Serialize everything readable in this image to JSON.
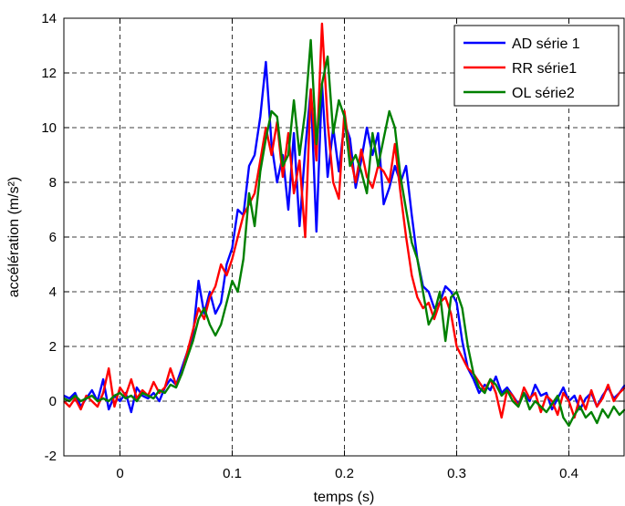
{
  "chart_data": {
    "type": "line",
    "title": "",
    "xlabel": "temps (s)",
    "ylabel": "accélération (m/s²)",
    "xlim": [
      -0.05,
      0.45
    ],
    "ylim": [
      -2,
      14
    ],
    "xticks": [
      0,
      0.1,
      0.2,
      0.3,
      0.4
    ],
    "xtick_labels": [
      "0",
      "0.1",
      "0.2",
      "0.3",
      "0.4"
    ],
    "yticks": [
      -2,
      0,
      2,
      4,
      6,
      8,
      10,
      12,
      14
    ],
    "ytick_labels": [
      "-2",
      "0",
      "2",
      "4",
      "6",
      "8",
      "10",
      "12",
      "14"
    ],
    "grid": true,
    "grid_style": "dashed",
    "legend_position": "top-right",
    "series": [
      {
        "name": "AD série 1",
        "color": "#0000ff",
        "x": [
          -0.05,
          -0.045,
          -0.04,
          -0.035,
          -0.03,
          -0.025,
          -0.02,
          -0.015,
          -0.01,
          -0.005,
          0,
          0.005,
          0.01,
          0.015,
          0.02,
          0.025,
          0.03,
          0.035,
          0.04,
          0.045,
          0.05,
          0.055,
          0.06,
          0.065,
          0.07,
          0.075,
          0.08,
          0.085,
          0.09,
          0.095,
          0.1,
          0.105,
          0.11,
          0.115,
          0.12,
          0.125,
          0.13,
          0.135,
          0.14,
          0.145,
          0.15,
          0.155,
          0.16,
          0.165,
          0.17,
          0.175,
          0.18,
          0.185,
          0.19,
          0.195,
          0.2,
          0.205,
          0.21,
          0.215,
          0.22,
          0.225,
          0.23,
          0.235,
          0.24,
          0.245,
          0.25,
          0.255,
          0.26,
          0.265,
          0.27,
          0.275,
          0.28,
          0.285,
          0.29,
          0.295,
          0.3,
          0.305,
          0.31,
          0.315,
          0.32,
          0.325,
          0.33,
          0.335,
          0.34,
          0.345,
          0.35,
          0.355,
          0.36,
          0.365,
          0.37,
          0.375,
          0.38,
          0.385,
          0.39,
          0.395,
          0.4,
          0.405,
          0.41,
          0.415,
          0.42,
          0.425,
          0.43,
          0.435,
          0.44,
          0.445,
          0.45
        ],
        "y": [
          0.2,
          0.1,
          0.3,
          -0.2,
          0.1,
          0.4,
          0.0,
          0.8,
          -0.3,
          0.2,
          0.0,
          0.3,
          -0.4,
          0.5,
          0.2,
          0.1,
          0.3,
          0.0,
          0.5,
          0.8,
          0.6,
          1.2,
          1.8,
          2.4,
          4.4,
          3.2,
          4.0,
          3.2,
          3.6,
          5.0,
          5.6,
          7.0,
          6.8,
          8.6,
          9.0,
          10.4,
          12.4,
          9.4,
          8.0,
          9.0,
          7.0,
          9.8,
          6.4,
          9.2,
          11.4,
          6.2,
          11.6,
          8.2,
          10.0,
          8.4,
          10.2,
          9.6,
          7.8,
          8.8,
          10.0,
          9.0,
          9.8,
          7.2,
          7.8,
          8.6,
          8.0,
          8.6,
          6.8,
          5.2,
          4.2,
          4.0,
          3.4,
          3.6,
          4.2,
          4.0,
          3.6,
          2.2,
          1.2,
          0.8,
          0.3,
          0.6,
          0.4,
          0.9,
          0.3,
          0.5,
          0.2,
          -0.1,
          0.3,
          0.0,
          0.6,
          0.2,
          0.3,
          -0.3,
          0.1,
          0.5,
          0.0,
          0.2,
          -0.3,
          0.1,
          0.3,
          -0.2,
          0.2,
          0.5,
          0.1,
          0.3,
          0.6
        ]
      },
      {
        "name": "RR série1",
        "color": "#ff0000",
        "x": [
          -0.05,
          -0.045,
          -0.04,
          -0.035,
          -0.03,
          -0.025,
          -0.02,
          -0.015,
          -0.01,
          -0.005,
          0,
          0.005,
          0.01,
          0.015,
          0.02,
          0.025,
          0.03,
          0.035,
          0.04,
          0.045,
          0.05,
          0.055,
          0.06,
          0.065,
          0.07,
          0.075,
          0.08,
          0.085,
          0.09,
          0.095,
          0.1,
          0.105,
          0.11,
          0.115,
          0.12,
          0.125,
          0.13,
          0.135,
          0.14,
          0.145,
          0.15,
          0.155,
          0.16,
          0.165,
          0.17,
          0.175,
          0.18,
          0.185,
          0.19,
          0.195,
          0.2,
          0.205,
          0.21,
          0.215,
          0.22,
          0.225,
          0.23,
          0.235,
          0.24,
          0.245,
          0.25,
          0.255,
          0.26,
          0.265,
          0.27,
          0.275,
          0.28,
          0.285,
          0.29,
          0.295,
          0.3,
          0.305,
          0.31,
          0.315,
          0.32,
          0.325,
          0.33,
          0.335,
          0.34,
          0.345,
          0.35,
          0.355,
          0.36,
          0.365,
          0.37,
          0.375,
          0.38,
          0.385,
          0.39,
          0.395,
          0.4,
          0.405,
          0.41,
          0.415,
          0.42,
          0.425,
          0.43,
          0.435,
          0.44,
          0.445,
          0.45
        ],
        "y": [
          0.0,
          -0.2,
          0.1,
          -0.3,
          0.2,
          0.0,
          -0.2,
          0.3,
          1.2,
          -0.2,
          0.5,
          0.2,
          0.8,
          0.1,
          0.4,
          0.2,
          0.7,
          0.3,
          0.5,
          1.2,
          0.6,
          1.0,
          1.8,
          2.6,
          3.4,
          3.0,
          3.8,
          4.2,
          5.0,
          4.6,
          5.2,
          6.0,
          6.8,
          7.2,
          7.6,
          8.8,
          10.0,
          9.0,
          10.2,
          8.2,
          9.8,
          7.6,
          8.8,
          6.0,
          11.4,
          8.8,
          13.8,
          10.2,
          8.0,
          7.4,
          10.6,
          9.0,
          8.0,
          9.2,
          8.2,
          7.8,
          8.6,
          8.4,
          8.0,
          9.4,
          7.6,
          6.0,
          4.6,
          3.8,
          3.4,
          3.6,
          3.0,
          3.6,
          3.8,
          3.2,
          2.0,
          1.6,
          1.2,
          1.0,
          0.7,
          0.4,
          0.8,
          0.3,
          -0.6,
          0.4,
          0.2,
          -0.2,
          0.5,
          0.1,
          0.3,
          -0.4,
          0.2,
          0.0,
          -0.5,
          0.3,
          0.0,
          -0.6,
          0.2,
          -0.3,
          0.4,
          -0.2,
          0.1,
          0.6,
          0.0,
          0.3,
          0.5
        ]
      },
      {
        "name": "OL série2",
        "color": "#008000",
        "x": [
          -0.05,
          -0.045,
          -0.04,
          -0.035,
          -0.03,
          -0.025,
          -0.02,
          -0.015,
          -0.01,
          -0.005,
          0,
          0.005,
          0.01,
          0.015,
          0.02,
          0.025,
          0.03,
          0.035,
          0.04,
          0.045,
          0.05,
          0.055,
          0.06,
          0.065,
          0.07,
          0.075,
          0.08,
          0.085,
          0.09,
          0.095,
          0.1,
          0.105,
          0.11,
          0.115,
          0.12,
          0.125,
          0.13,
          0.135,
          0.14,
          0.145,
          0.15,
          0.155,
          0.16,
          0.165,
          0.17,
          0.175,
          0.18,
          0.185,
          0.19,
          0.195,
          0.2,
          0.205,
          0.21,
          0.215,
          0.22,
          0.225,
          0.23,
          0.235,
          0.24,
          0.245,
          0.25,
          0.255,
          0.26,
          0.265,
          0.27,
          0.275,
          0.28,
          0.285,
          0.29,
          0.295,
          0.3,
          0.305,
          0.31,
          0.315,
          0.32,
          0.325,
          0.33,
          0.335,
          0.34,
          0.345,
          0.35,
          0.355,
          0.36,
          0.365,
          0.37,
          0.375,
          0.38,
          0.385,
          0.39,
          0.395,
          0.4,
          0.405,
          0.41,
          0.415,
          0.42,
          0.425,
          0.43,
          0.435,
          0.44,
          0.445,
          0.45
        ],
        "y": [
          0.1,
          0.0,
          0.2,
          0.0,
          0.1,
          0.2,
          0.0,
          0.1,
          0.0,
          0.2,
          0.3,
          0.1,
          0.2,
          0.0,
          0.3,
          0.2,
          0.1,
          0.4,
          0.3,
          0.6,
          0.5,
          1.0,
          1.6,
          2.2,
          3.0,
          3.4,
          2.8,
          2.4,
          2.8,
          3.6,
          4.4,
          4.0,
          5.2,
          7.6,
          6.4,
          8.4,
          9.6,
          10.6,
          10.4,
          8.6,
          9.0,
          11.0,
          9.0,
          10.6,
          13.2,
          9.4,
          11.6,
          12.6,
          9.8,
          11.0,
          10.4,
          8.6,
          9.0,
          8.4,
          7.6,
          9.8,
          8.6,
          9.6,
          10.6,
          10.0,
          8.2,
          7.0,
          5.8,
          5.2,
          4.0,
          2.8,
          3.2,
          4.0,
          2.2,
          3.8,
          4.0,
          3.4,
          2.0,
          1.0,
          0.5,
          0.3,
          0.8,
          0.6,
          0.2,
          0.4,
          0.0,
          -0.2,
          0.3,
          -0.3,
          0.0,
          -0.2,
          -0.4,
          -0.1,
          0.2,
          -0.6,
          -0.9,
          -0.5,
          -0.2,
          -0.6,
          -0.4,
          -0.8,
          -0.3,
          -0.6,
          -0.2,
          -0.5,
          -0.3
        ]
      }
    ]
  }
}
